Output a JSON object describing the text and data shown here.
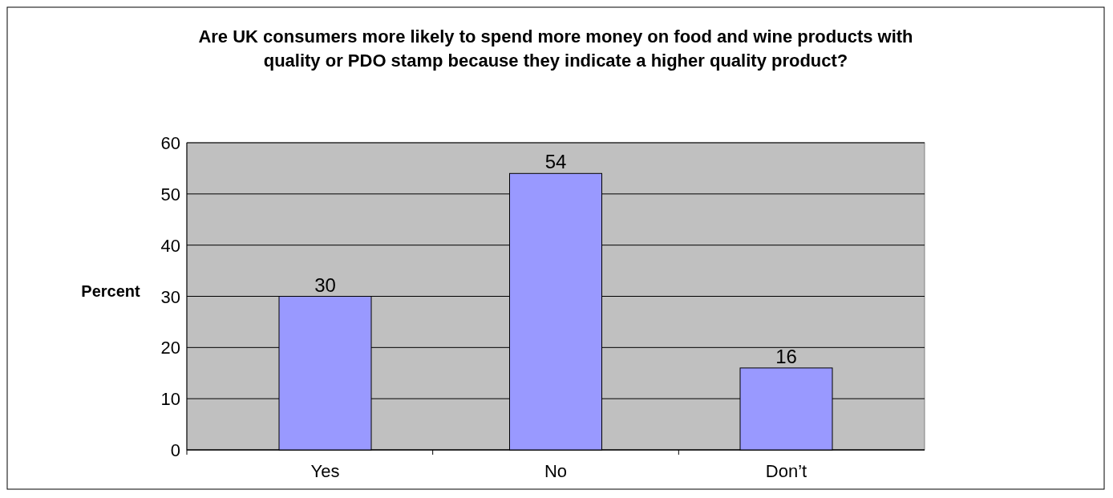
{
  "chart_data": {
    "type": "bar",
    "title": "Are UK consumers more likely to spend more money on food and wine products with quality or PDO stamp because they indicate a higher quality product?",
    "ylabel": "Percent",
    "categories": [
      "Yes",
      "No",
      "Don’t"
    ],
    "values": [
      30,
      54,
      16
    ],
    "color": "#9999ff",
    "ylim": [
      0,
      60
    ],
    "yticks": [
      0,
      10,
      20,
      30,
      40,
      50,
      60
    ],
    "grid": "y",
    "data_labels": true
  }
}
